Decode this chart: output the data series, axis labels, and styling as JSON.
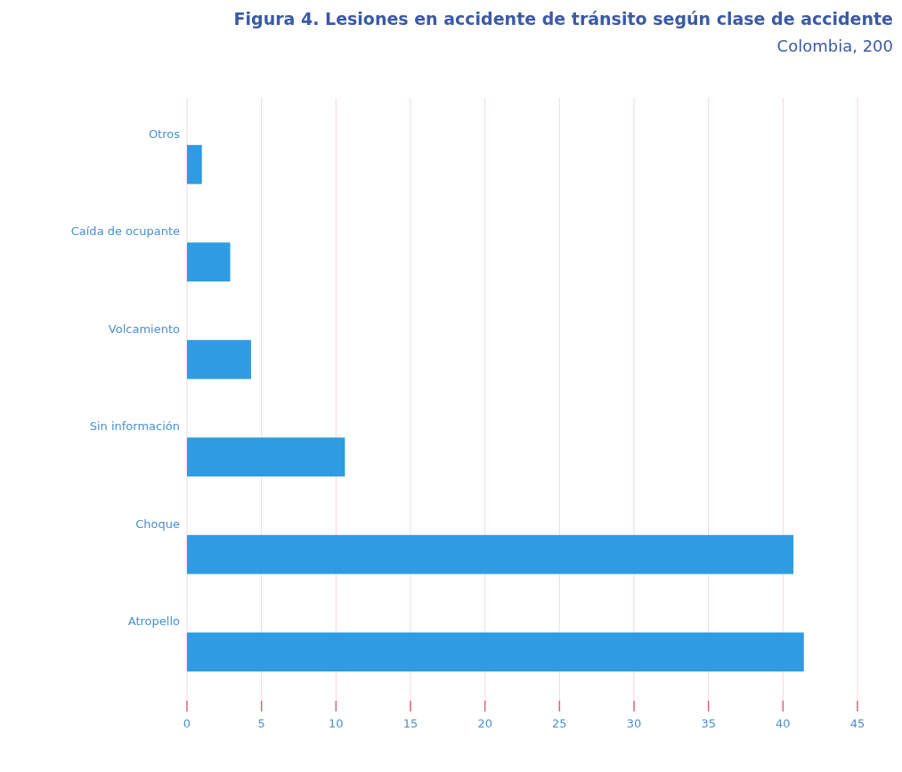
{
  "chart_data": {
    "type": "bar",
    "orientation": "horizontal",
    "title": "Figura 4. Lesiones en accidente de tránsito según clase de accidente",
    "subtitle": "Colombia, 200",
    "categories": [
      "Otros",
      "Caída de ocupante",
      "Volcamiento",
      "Sin información",
      "Choque",
      "Atropello"
    ],
    "values": [
      1.0,
      2.9,
      4.3,
      10.6,
      40.7,
      41.4
    ],
    "color": "#2f9be3",
    "xlim": [
      0,
      45
    ],
    "xticks": [
      0,
      5,
      10,
      15,
      20,
      25,
      30,
      35,
      40,
      45
    ],
    "grid": "x"
  }
}
